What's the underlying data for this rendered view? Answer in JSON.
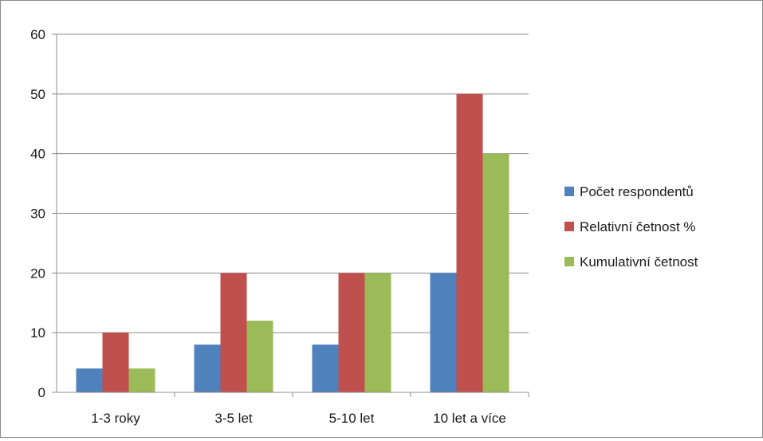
{
  "chart_data": {
    "type": "bar",
    "title": "",
    "xlabel": "",
    "ylabel": "",
    "categories": [
      "1-3 roky",
      "3-5 let",
      "5-10 let",
      "10 let a více"
    ],
    "series": [
      {
        "name": "Počet respondentů",
        "color": "#4f81bd",
        "values": [
          4,
          8,
          8,
          20
        ]
      },
      {
        "name": "Relativní četnost %",
        "color": "#c0504d",
        "values": [
          10,
          20,
          20,
          50
        ]
      },
      {
        "name": "Kumulativní četnost",
        "color": "#9bbb59",
        "values": [
          4,
          12,
          20,
          40
        ]
      }
    ],
    "ylim": [
      0,
      60
    ],
    "yticks": [
      "0",
      "10",
      "20",
      "30",
      "40",
      "50",
      "60"
    ],
    "grid": true,
    "legend": "right"
  }
}
